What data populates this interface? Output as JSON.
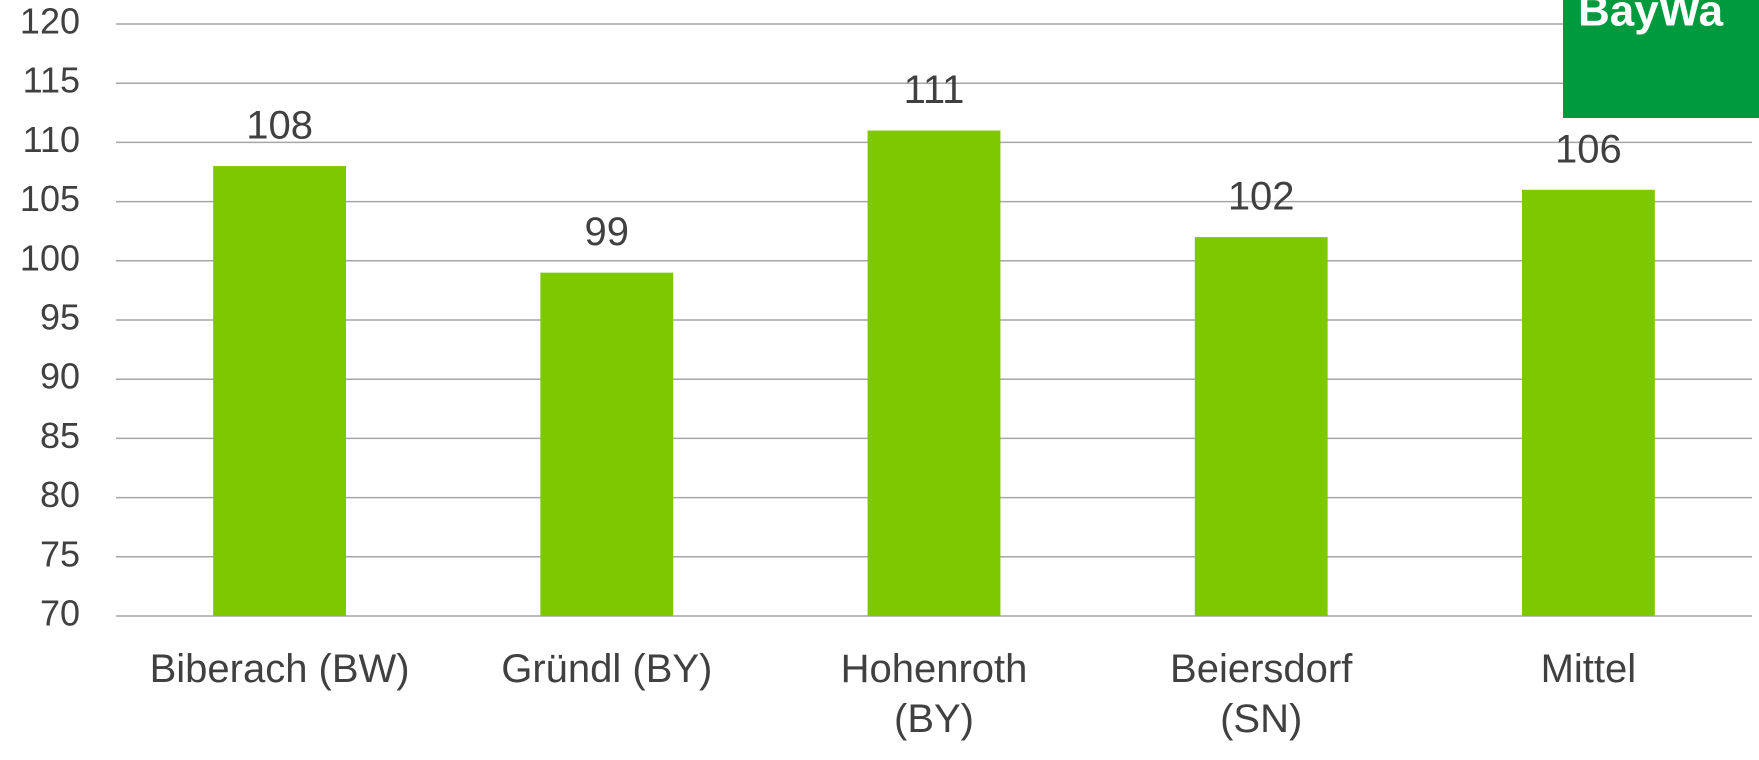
{
  "chart_data": {
    "type": "bar",
    "logo_text": "BayWa",
    "categories": [
      "Biberach (BW)",
      "Gründl (BY)",
      "Hohenroth (BY)",
      "Beiersdorf (SN)",
      "Mittel"
    ],
    "values": [
      108,
      99,
      111,
      102,
      106
    ],
    "color": "#7ec800",
    "ylim": [
      70,
      120
    ],
    "yticks": [
      70,
      75,
      80,
      85,
      90,
      95,
      100,
      105,
      110,
      115,
      120
    ],
    "grid": true
  }
}
